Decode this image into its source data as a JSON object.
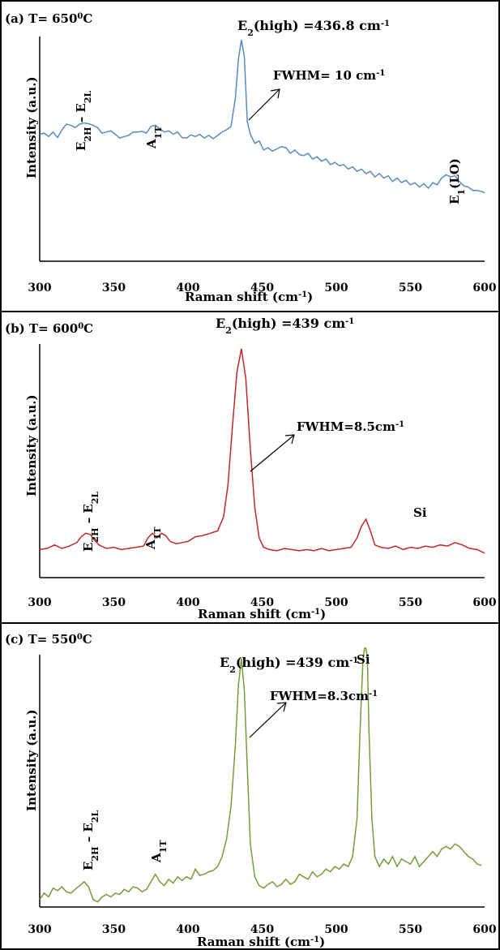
{
  "chart_data": [
    {
      "type": "line",
      "panel_label": "(a)",
      "temperature": {
        "prefix": "T= 650",
        "sup": "0",
        "suffix": "C"
      },
      "xlabel": {
        "text": "Raman shift (cm",
        "sup": "-1",
        "tail": ")"
      },
      "ylabel": "Intensity (a.u.)",
      "xlim": [
        300,
        600
      ],
      "xticks": [
        300,
        350,
        400,
        450,
        500,
        550,
        600
      ],
      "yaxis_ticks": false,
      "grid": false,
      "series": [
        {
          "color": "#5b8ac0",
          "x": [
            300,
            303,
            306,
            309,
            312,
            315,
            318,
            321,
            324,
            327,
            330,
            333,
            336,
            339,
            342,
            345,
            348,
            351,
            354,
            357,
            360,
            363,
            366,
            369,
            372,
            375,
            378,
            381,
            384,
            387,
            390,
            393,
            396,
            399,
            402,
            405,
            408,
            411,
            414,
            417,
            420,
            423,
            426,
            429,
            432,
            434,
            436,
            438,
            440,
            442,
            445,
            448,
            451,
            454,
            457,
            460,
            463,
            466,
            469,
            472,
            475,
            478,
            481,
            484,
            487,
            490,
            493,
            496,
            499,
            502,
            505,
            508,
            511,
            514,
            517,
            520,
            523,
            526,
            529,
            532,
            535,
            538,
            541,
            544,
            547,
            550,
            553,
            556,
            559,
            562,
            565,
            568,
            571,
            574,
            577,
            580,
            583,
            586,
            589,
            592,
            595,
            598,
            600
          ],
          "y": [
            0.565,
            0.57,
            0.555,
            0.575,
            0.55,
            0.585,
            0.61,
            0.605,
            0.595,
            0.61,
            0.615,
            0.612,
            0.605,
            0.595,
            0.57,
            0.575,
            0.58,
            0.565,
            0.548,
            0.555,
            0.56,
            0.575,
            0.575,
            0.578,
            0.57,
            0.6,
            0.605,
            0.59,
            0.575,
            0.58,
            0.565,
            0.575,
            0.55,
            0.548,
            0.562,
            0.555,
            0.565,
            0.548,
            0.56,
            0.545,
            0.56,
            0.575,
            0.585,
            0.6,
            0.73,
            0.9,
            0.985,
            0.91,
            0.62,
            0.565,
            0.525,
            0.535,
            0.495,
            0.505,
            0.49,
            0.5,
            0.51,
            0.505,
            0.48,
            0.495,
            0.475,
            0.47,
            0.48,
            0.455,
            0.465,
            0.445,
            0.455,
            0.43,
            0.44,
            0.425,
            0.43,
            0.41,
            0.42,
            0.4,
            0.41,
            0.39,
            0.4,
            0.375,
            0.39,
            0.37,
            0.38,
            0.355,
            0.37,
            0.35,
            0.36,
            0.34,
            0.35,
            0.33,
            0.345,
            0.325,
            0.35,
            0.34,
            0.37,
            0.385,
            0.375,
            0.38,
            0.355,
            0.335,
            0.33,
            0.315,
            0.315,
            0.31,
            0.305
          ]
        }
      ],
      "annotations": [
        {
          "base": "E",
          "sub": "2",
          "rest": "(high) =436.8 cm",
          "sup": "-1"
        },
        {
          "base": "FWHM= 10 cm",
          "sup": "-1"
        },
        {
          "mode": "E",
          "mode_sub": "2H",
          "dash": " – E",
          "dash_sub": "2L"
        },
        {
          "mode": "A",
          "mode_sub": "1T"
        },
        {
          "mode": "E",
          "mode_sub": "1",
          "rest": "(LO)"
        }
      ]
    },
    {
      "type": "line",
      "panel_label": "(b)",
      "temperature": {
        "prefix": "T= 600",
        "sup": "0",
        "suffix": "C"
      },
      "xlabel": {
        "text": "Raman shift (cm",
        "sup": "-1",
        "tail": ")"
      },
      "ylabel": "Intensity (a.u.)",
      "xlim": [
        300,
        600
      ],
      "xticks": [
        300,
        350,
        400,
        450,
        500,
        550,
        600
      ],
      "yaxis_ticks": false,
      "grid": false,
      "series": [
        {
          "color": "#c0282b",
          "x": [
            300,
            305,
            310,
            315,
            320,
            325,
            328,
            331,
            334,
            337,
            340,
            345,
            350,
            355,
            360,
            365,
            370,
            373,
            376,
            379,
            382,
            385,
            388,
            392,
            396,
            400,
            405,
            410,
            415,
            420,
            424,
            427,
            430,
            433,
            436,
            439,
            442,
            445,
            448,
            451,
            455,
            460,
            465,
            470,
            475,
            480,
            485,
            490,
            495,
            500,
            505,
            510,
            514,
            517,
            520,
            523,
            526,
            530,
            535,
            540,
            545,
            550,
            555,
            560,
            565,
            570,
            575,
            580,
            585,
            590,
            595,
            600
          ],
          "y": [
            0.12,
            0.125,
            0.14,
            0.125,
            0.135,
            0.15,
            0.175,
            0.19,
            0.185,
            0.16,
            0.14,
            0.125,
            0.13,
            0.12,
            0.125,
            0.13,
            0.135,
            0.17,
            0.19,
            0.17,
            0.19,
            0.18,
            0.155,
            0.145,
            0.15,
            0.155,
            0.175,
            0.18,
            0.19,
            0.2,
            0.26,
            0.4,
            0.65,
            0.88,
            0.98,
            0.85,
            0.55,
            0.3,
            0.17,
            0.13,
            0.12,
            0.115,
            0.125,
            0.12,
            0.115,
            0.12,
            0.115,
            0.125,
            0.115,
            0.12,
            0.125,
            0.13,
            0.17,
            0.22,
            0.25,
            0.2,
            0.14,
            0.13,
            0.125,
            0.135,
            0.12,
            0.13,
            0.125,
            0.135,
            0.13,
            0.14,
            0.135,
            0.15,
            0.14,
            0.125,
            0.12,
            0.105
          ]
        }
      ],
      "annotations": [
        {
          "base": "E",
          "sub": "2",
          "rest": "(high) =439 cm",
          "sup": "-1"
        },
        {
          "base": "FWHM=8.5cm",
          "sup": "-1"
        },
        {
          "mode": "E",
          "mode_sub": "2H",
          "dash": " – E",
          "dash_sub": "2L"
        },
        {
          "mode": "A",
          "mode_sub": "1T"
        },
        {
          "mode": "Si"
        }
      ]
    },
    {
      "type": "line",
      "panel_label": "(c)",
      "temperature": {
        "prefix": "T= 550",
        "sup": "0",
        "suffix": "C"
      },
      "xlabel": {
        "text": "Raman shift (cm",
        "sup": "-1",
        "tail": ")"
      },
      "ylabel": "Intensity (a.u.)",
      "xlim": [
        300,
        600
      ],
      "xticks": [
        300,
        350,
        400,
        450,
        500,
        550,
        600
      ],
      "yaxis_ticks": false,
      "grid": false,
      "series": [
        {
          "color": "#7a9a3a",
          "x": [
            300,
            303,
            306,
            309,
            312,
            315,
            318,
            321,
            324,
            327,
            330,
            333,
            336,
            339,
            342,
            345,
            348,
            351,
            354,
            357,
            360,
            363,
            366,
            369,
            372,
            375,
            378,
            381,
            384,
            387,
            390,
            393,
            396,
            399,
            402,
            405,
            408,
            411,
            414,
            417,
            420,
            423,
            426,
            429,
            432,
            434,
            436,
            438,
            440,
            442,
            445,
            448,
            451,
            454,
            457,
            460,
            463,
            466,
            469,
            472,
            475,
            478,
            481,
            484,
            487,
            490,
            493,
            496,
            499,
            502,
            505,
            508,
            511,
            514,
            516,
            518,
            519,
            520,
            521,
            522,
            524,
            526,
            529,
            532,
            535,
            538,
            541,
            544,
            547,
            550,
            553,
            556,
            559,
            562,
            565,
            568,
            571,
            574,
            577,
            580,
            583,
            586,
            589,
            592,
            595,
            598
          ],
          "y": [
            0.03,
            0.055,
            0.04,
            0.075,
            0.065,
            0.08,
            0.06,
            0.055,
            0.07,
            0.085,
            0.1,
            0.08,
            0.03,
            0.02,
            0.04,
            0.05,
            0.04,
            0.055,
            0.05,
            0.07,
            0.06,
            0.08,
            0.075,
            0.06,
            0.07,
            0.1,
            0.13,
            0.1,
            0.085,
            0.11,
            0.095,
            0.12,
            0.105,
            0.12,
            0.11,
            0.15,
            0.125,
            0.13,
            0.14,
            0.145,
            0.16,
            0.2,
            0.27,
            0.4,
            0.65,
            0.88,
            0.985,
            0.86,
            0.55,
            0.25,
            0.12,
            0.085,
            0.075,
            0.09,
            0.1,
            0.08,
            0.09,
            0.11,
            0.09,
            0.1,
            0.13,
            0.12,
            0.11,
            0.14,
            0.12,
            0.13,
            0.15,
            0.14,
            0.16,
            0.15,
            0.17,
            0.16,
            0.2,
            0.35,
            0.7,
            0.98,
            1.05,
            1.05,
            0.98,
            0.7,
            0.35,
            0.2,
            0.16,
            0.19,
            0.17,
            0.2,
            0.16,
            0.19,
            0.18,
            0.17,
            0.2,
            0.16,
            0.18,
            0.2,
            0.22,
            0.2,
            0.23,
            0.24,
            0.23,
            0.25,
            0.24,
            0.22,
            0.2,
            0.19,
            0.17,
            0.165
          ]
        }
      ],
      "annotations": [
        {
          "base": "E",
          "sub": "2",
          "rest": "(high) =439 cm",
          "sup": "-1"
        },
        {
          "base": "FWHM=8.3cm",
          "sup": "-1"
        },
        {
          "mode": "E",
          "mode_sub": "2H",
          "dash": " – E",
          "dash_sub": "2L"
        },
        {
          "mode": "A",
          "mode_sub": "1T"
        },
        {
          "mode": "Si"
        }
      ]
    }
  ]
}
